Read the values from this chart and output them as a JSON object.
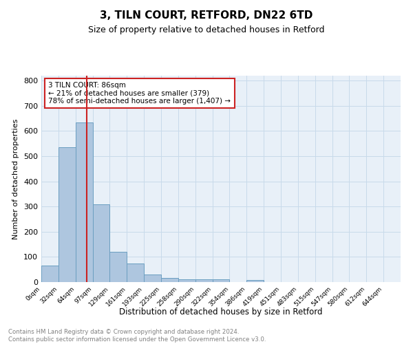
{
  "title1": "3, TILN COURT, RETFORD, DN22 6TD",
  "title2": "Size of property relative to detached houses in Retford",
  "xlabel": "Distribution of detached houses by size in Retford",
  "ylabel": "Number of detached properties",
  "bar_labels": [
    "0sqm",
    "32sqm",
    "64sqm",
    "97sqm",
    "129sqm",
    "161sqm",
    "193sqm",
    "225sqm",
    "258sqm",
    "290sqm",
    "322sqm",
    "354sqm",
    "386sqm",
    "419sqm",
    "451sqm",
    "483sqm",
    "515sqm",
    "547sqm",
    "580sqm",
    "612sqm",
    "644sqm"
  ],
  "bar_values": [
    65,
    535,
    635,
    310,
    120,
    75,
    30,
    17,
    10,
    10,
    10,
    0,
    8,
    0,
    0,
    0,
    0,
    0,
    0,
    0,
    0
  ],
  "bar_color": "#aec6df",
  "bar_edge_color": "#6a9ec0",
  "grid_color": "#c8daea",
  "bg_color": "#e8f0f8",
  "vline_color": "#cc2222",
  "annotation_text": "3 TILN COURT: 86sqm\n← 21% of detached houses are smaller (379)\n78% of semi-detached houses are larger (1,407) →",
  "annotation_box_color": "#ffffff",
  "annotation_border_color": "#cc2222",
  "footer": "Contains HM Land Registry data © Crown copyright and database right 2024.\nContains public sector information licensed under the Open Government Licence v3.0.",
  "ylim": [
    0,
    820
  ],
  "yticks": [
    0,
    100,
    200,
    300,
    400,
    500,
    600,
    700,
    800
  ],
  "vline_sqm": 86,
  "bin_edges_sqm": [
    0,
    32,
    64,
    97,
    129,
    161,
    193,
    225,
    258,
    290,
    322,
    354,
    386,
    419,
    451,
    483,
    515,
    547,
    580,
    612,
    644
  ]
}
